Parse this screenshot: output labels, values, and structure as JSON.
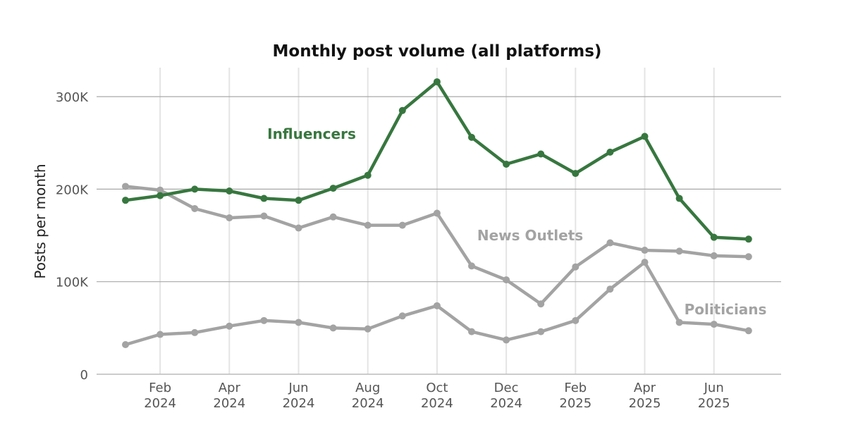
{
  "chart_data": {
    "type": "line",
    "title": "Monthly post volume (all platforms)",
    "xlabel": "",
    "ylabel": "Posts per month",
    "ylim": [
      0,
      320000
    ],
    "y_ticks": [
      {
        "value": 0,
        "label": "0"
      },
      {
        "value": 100000,
        "label": "100K"
      },
      {
        "value": 200000,
        "label": "200K"
      },
      {
        "value": 300000,
        "label": "300K"
      }
    ],
    "x_ticks": [
      {
        "index": 1,
        "month": "Feb",
        "year": "2024"
      },
      {
        "index": 3,
        "month": "Apr",
        "year": "2024"
      },
      {
        "index": 5,
        "month": "Jun",
        "year": "2024"
      },
      {
        "index": 7,
        "month": "Aug",
        "year": "2024"
      },
      {
        "index": 9,
        "month": "Oct",
        "year": "2024"
      },
      {
        "index": 11,
        "month": "Dec",
        "year": "2024"
      },
      {
        "index": 13,
        "month": "Feb",
        "year": "2025"
      },
      {
        "index": 15,
        "month": "Apr",
        "year": "2025"
      },
      {
        "index": 17,
        "month": "Jun",
        "year": "2025"
      }
    ],
    "series": [
      {
        "name": "Influencers",
        "label": "Influencers",
        "color": "#37773f",
        "values": [
          188000,
          193000,
          200000,
          198000,
          190000,
          188000,
          201000,
          215000,
          285000,
          316000,
          256000,
          227000,
          238000,
          217000,
          240000,
          257000,
          190000,
          148000,
          146000
        ]
      },
      {
        "name": "News Outlets",
        "label": "News Outlets",
        "color": "#a3a3a3",
        "values": [
          203000,
          199000,
          179000,
          169000,
          171000,
          158000,
          170000,
          161000,
          161000,
          174000,
          117000,
          102000,
          76000,
          116000,
          142000,
          134000,
          133000,
          128000,
          127000
        ]
      },
      {
        "name": "Politicians",
        "label": "Politicians",
        "color": "#a3a3a3",
        "values": [
          32000,
          43000,
          45000,
          52000,
          58000,
          56000,
          50000,
          49000,
          63000,
          74000,
          46000,
          37000,
          46000,
          58000,
          92000,
          121000,
          56000,
          54000,
          47000
        ]
      }
    ],
    "grid": true
  }
}
